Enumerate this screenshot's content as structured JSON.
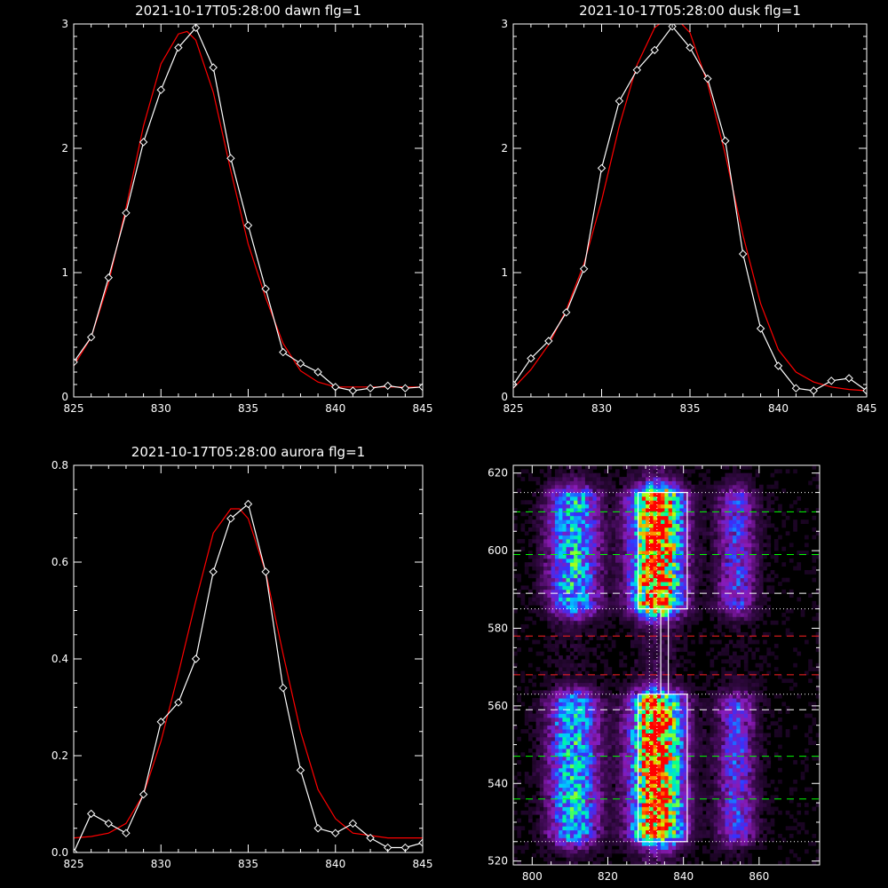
{
  "chart_data": [
    {
      "type": "line",
      "title": "2021-10-17T05:28:00 dawn flg=1",
      "xlim": [
        825,
        845
      ],
      "ylim": [
        0,
        3
      ],
      "xticks": [
        825,
        830,
        835,
        840,
        845
      ],
      "yticks": [
        0,
        1,
        2,
        3
      ],
      "series": [
        {
          "color": "#ffffff",
          "marker": "diamond",
          "x": [
            825,
            826,
            827,
            828,
            829,
            830,
            831,
            832,
            833,
            834,
            835,
            836,
            837,
            838,
            839,
            840,
            841,
            842,
            843,
            844,
            845
          ],
          "y": [
            0.28,
            0.48,
            0.96,
            1.48,
            2.05,
            2.47,
            2.81,
            2.97,
            2.65,
            1.92,
            1.38,
            0.87,
            0.36,
            0.27,
            0.2,
            0.08,
            0.05,
            0.07,
            0.09,
            0.07,
            0.08
          ]
        },
        {
          "color": "#ff0000",
          "marker": "none",
          "x": [
            825,
            826,
            827,
            828,
            829,
            830,
            831,
            831.5,
            832,
            833,
            834,
            835,
            836,
            837,
            838,
            839,
            840,
            841,
            842,
            843,
            844,
            845
          ],
          "y": [
            0.25,
            0.48,
            0.92,
            1.52,
            2.18,
            2.68,
            2.92,
            2.94,
            2.87,
            2.45,
            1.82,
            1.23,
            0.8,
            0.43,
            0.21,
            0.12,
            0.08,
            0.08,
            0.08,
            0.08,
            0.08,
            0.08
          ]
        }
      ]
    },
    {
      "type": "line",
      "title": "2021-10-17T05:28:00 dusk flg=1",
      "xlim": [
        825,
        845
      ],
      "ylim": [
        0,
        3
      ],
      "xticks": [
        825,
        830,
        835,
        840,
        845
      ],
      "yticks": [
        0,
        1,
        2,
        3
      ],
      "series": [
        {
          "color": "#ffffff",
          "marker": "diamond",
          "x": [
            825,
            826,
            827,
            828,
            829,
            830,
            831,
            832,
            833,
            834,
            835,
            836,
            837,
            838,
            839,
            840,
            841,
            842,
            843,
            844,
            845
          ],
          "y": [
            0.1,
            0.31,
            0.45,
            0.68,
            1.03,
            1.84,
            2.38,
            2.63,
            2.79,
            2.98,
            2.81,
            2.56,
            2.06,
            1.15,
            0.55,
            0.25,
            0.07,
            0.05,
            0.13,
            0.15,
            0.05
          ]
        },
        {
          "color": "#ff0000",
          "marker": "none",
          "x": [
            825,
            826,
            827,
            828,
            829,
            830,
            831,
            832,
            833,
            834,
            835,
            836,
            837,
            838,
            839,
            840,
            841,
            842,
            843,
            844,
            845
          ],
          "y": [
            0.07,
            0.22,
            0.42,
            0.7,
            1.07,
            1.58,
            2.18,
            2.67,
            2.97,
            3.08,
            2.93,
            2.52,
            1.95,
            1.3,
            0.75,
            0.38,
            0.2,
            0.12,
            0.08,
            0.06,
            0.05
          ]
        }
      ]
    },
    {
      "type": "line",
      "title": "2021-10-17T05:28:00 aurora flg=1",
      "xlim": [
        825,
        845
      ],
      "ylim": [
        0,
        0.8
      ],
      "xticks": [
        825,
        830,
        835,
        840,
        845
      ],
      "yticks": [
        0.0,
        0.2,
        0.4,
        0.6,
        0.8
      ],
      "series": [
        {
          "color": "#ffffff",
          "marker": "diamond",
          "x": [
            825,
            826,
            827,
            828,
            829,
            830,
            831,
            832,
            833,
            834,
            835,
            836,
            837,
            838,
            839,
            840,
            841,
            842,
            843,
            844,
            845
          ],
          "y": [
            0.0,
            0.08,
            0.06,
            0.04,
            0.12,
            0.27,
            0.31,
            0.4,
            0.58,
            0.69,
            0.72,
            0.58,
            0.34,
            0.17,
            0.05,
            0.04,
            0.06,
            0.03,
            0.01,
            0.01,
            0.02
          ]
        },
        {
          "color": "#ff0000",
          "marker": "none",
          "x": [
            825,
            826,
            827,
            828,
            829,
            830,
            831,
            832,
            833,
            834,
            834.5,
            835,
            836,
            837,
            838,
            839,
            840,
            841,
            842,
            843,
            844,
            845
          ],
          "y": [
            0.03,
            0.033,
            0.04,
            0.06,
            0.12,
            0.23,
            0.37,
            0.52,
            0.66,
            0.71,
            0.71,
            0.69,
            0.58,
            0.41,
            0.25,
            0.13,
            0.07,
            0.04,
            0.035,
            0.03,
            0.03,
            0.03
          ]
        }
      ]
    },
    {
      "type": "heatmap",
      "xlim": [
        795,
        876
      ],
      "ylim": [
        519,
        622
      ],
      "xticks": [
        800,
        820,
        840,
        860
      ],
      "yticks": [
        520,
        540,
        560,
        580,
        600,
        620
      ],
      "columns": [
        {
          "center": 811,
          "width": 4.5,
          "amp": 0.5
        },
        {
          "center": 833,
          "width": 4.5,
          "amp": 1.0
        },
        {
          "center": 854,
          "width": 3.5,
          "amp": 0.3
        }
      ],
      "bands": [
        {
          "center": 600,
          "half": 13
        },
        {
          "center": 544,
          "half": 16
        }
      ],
      "colormap": [
        "#000000",
        "#3c0a50",
        "#8a1ab4",
        "#3232ff",
        "#00c8ff",
        "#00ff96",
        "#c8ff00",
        "#ff8c00",
        "#ff0000"
      ],
      "boxes": [
        {
          "x": [
            828,
            841
          ],
          "y": [
            585,
            615
          ]
        },
        {
          "x": [
            828,
            841
          ],
          "y": [
            525,
            563
          ]
        },
        {
          "x": [
            834,
            836
          ],
          "y": [
            563,
            585
          ]
        }
      ],
      "hlines_white_dotted": [
        615,
        585,
        563,
        525
      ],
      "hlines_white_dashed": [
        589,
        559
      ],
      "hlines_green_dashed": [
        610,
        599,
        547,
        536
      ],
      "hlines_red_dashed": [
        578,
        568
      ],
      "vlines_white_dotted": [
        831,
        833
      ]
    }
  ]
}
